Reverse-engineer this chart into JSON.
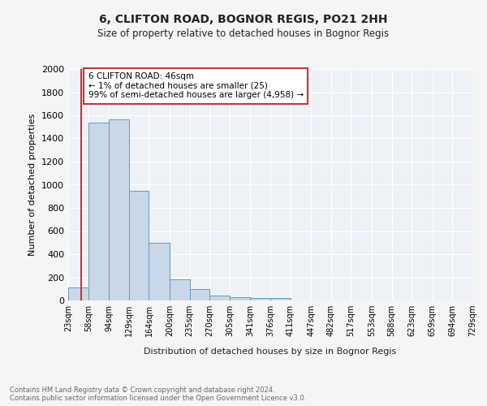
{
  "title1": "6, CLIFTON ROAD, BOGNOR REGIS, PO21 2HH",
  "title2": "Size of property relative to detached houses in Bognor Regis",
  "xlabel": "Distribution of detached houses by size in Bognor Regis",
  "ylabel": "Number of detached properties",
  "bin_labels": [
    "23sqm",
    "58sqm",
    "94sqm",
    "129sqm",
    "164sqm",
    "200sqm",
    "235sqm",
    "270sqm",
    "305sqm",
    "341sqm",
    "376sqm",
    "411sqm",
    "447sqm",
    "482sqm",
    "517sqm",
    "553sqm",
    "588sqm",
    "623sqm",
    "659sqm",
    "694sqm",
    "729sqm"
  ],
  "bin_edges": [
    23,
    58,
    94,
    129,
    164,
    200,
    235,
    270,
    305,
    341,
    376,
    411,
    447,
    482,
    517,
    553,
    588,
    623,
    659,
    694,
    729
  ],
  "bar_heights": [
    110,
    1540,
    1565,
    950,
    495,
    185,
    100,
    40,
    28,
    20,
    18,
    0,
    0,
    0,
    0,
    0,
    0,
    0,
    0,
    0
  ],
  "bar_color": "#c8d8e8",
  "bar_edge_color": "#6699bb",
  "vline_x": 46,
  "vline_color": "#cc3333",
  "annotation_text": "6 CLIFTON ROAD: 46sqm\n← 1% of detached houses are smaller (25)\n99% of semi-detached houses are larger (4,958) →",
  "annotation_box_color": "white",
  "annotation_box_edge": "#cc3333",
  "ylim": [
    0,
    2000
  ],
  "yticks": [
    0,
    200,
    400,
    600,
    800,
    1000,
    1200,
    1400,
    1600,
    1800,
    2000
  ],
  "footer": "Contains HM Land Registry data © Crown copyright and database right 2024.\nContains public sector information licensed under the Open Government Licence v3.0.",
  "bg_color": "#f5f5f5",
  "plot_bg_color": "#eef2f7"
}
